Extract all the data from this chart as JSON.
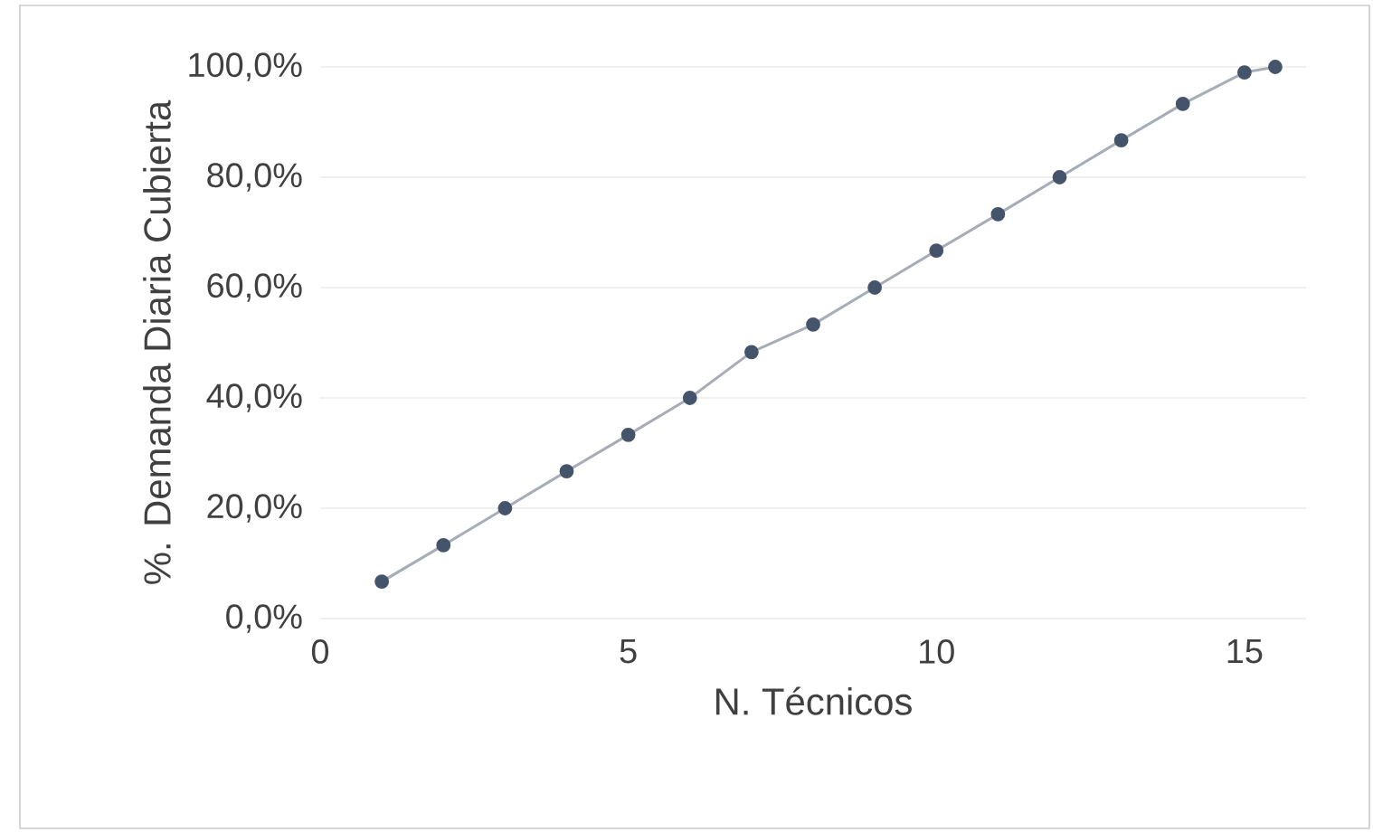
{
  "chart_data": {
    "type": "line",
    "xlabel": "N. Técnicos",
    "ylabel": "%. Demanda Diaria Cubierta",
    "x": [
      1,
      2,
      3,
      4,
      5,
      6,
      7,
      8,
      9,
      10,
      11,
      12,
      13,
      14,
      15,
      15.5
    ],
    "series": [
      {
        "color": "#44546a",
        "values": [
          6.7,
          13.3,
          20,
          26.7,
          33.3,
          40,
          48.3,
          53.3,
          60,
          66.7,
          73.3,
          80,
          86.7,
          93.3,
          99,
          100
        ]
      }
    ],
    "xlim": [
      0,
      16
    ],
    "xticks": [
      0,
      5,
      10,
      15
    ],
    "ylim": [
      0,
      100
    ],
    "yticks": [
      {
        "value": 0,
        "label": "0,0%"
      },
      {
        "value": 20,
        "label": "20,0%"
      },
      {
        "value": 40,
        "label": "40,0%"
      },
      {
        "value": 60,
        "label": "60,0%"
      },
      {
        "value": 80,
        "label": "80,0%"
      },
      {
        "value": 100,
        "label": "100,0%"
      }
    ],
    "grid": "y",
    "marker": "circle",
    "line_style": "solid"
  }
}
